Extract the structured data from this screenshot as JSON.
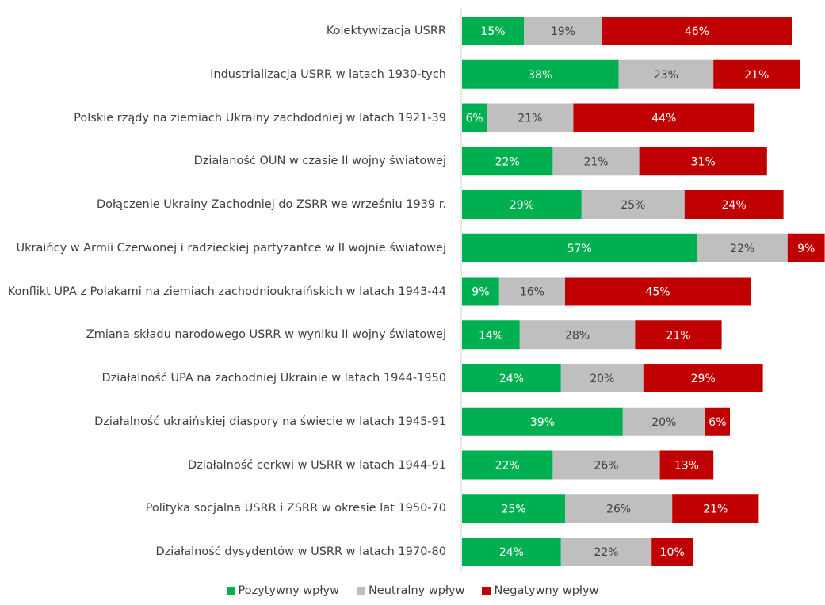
{
  "chart_data": {
    "type": "bar",
    "orientation": "horizontal",
    "stacked": true,
    "categories": [
      "Kolektywizacja USRR",
      "Industrializacja USRR w latach 1930-tych",
      "Polskie rządy na ziemiach Ukrainy zachdodniej w latach 1921-39",
      "Działaność OUN w czasie II wojny światowej",
      "Dołączenie Ukrainy Zachodniej do ZSRR we wrześniu 1939 r.",
      "Ukraińcy w Armii Czerwonej i radzieckiej partyzantce w II wojnie światowej",
      "Konflikt UPA z Polakami na ziemiach zachodnioukraińskich w latach 1943-44",
      "Zmiana składu narodowego USRR w wyniku II wojny światowej",
      "Działalność UPA na zachodniej Ukrainie w latach 1944-1950",
      "Działalność ukraińskiej diaspory na świecie w latach 1945-91",
      "Działalność cerkwi w USRR w latach 1944-91",
      "Polityka socjalna USRR i ZSRR w okresie lat 1950-70",
      "Działalność dysydentów w USRR w latach 1970-80"
    ],
    "series": [
      {
        "name": "Pozytywny wpływ",
        "color": "#00b050",
        "values": [
          15,
          38,
          6,
          22,
          29,
          57,
          9,
          14,
          24,
          39,
          22,
          25,
          24
        ],
        "value_labels": [
          "15%",
          "38%",
          "6%",
          "22%",
          "29%",
          "57%",
          "9%",
          "14%",
          "24%",
          "39%",
          "22%",
          "25%",
          "24%"
        ]
      },
      {
        "name": "Neutralny wpływ",
        "color": "#bfbfbf",
        "values": [
          19,
          23,
          21,
          21,
          25,
          22,
          16,
          28,
          20,
          20,
          26,
          26,
          22
        ],
        "value_labels": [
          "19%",
          "23%",
          "21%",
          "21%",
          "25%",
          "22%",
          "16%",
          "28%",
          "20%",
          "20%",
          "26%",
          "26%",
          "22%"
        ]
      },
      {
        "name": "Negatywny wpływ",
        "color": "#c00000",
        "values": [
          46,
          21,
          44,
          31,
          24,
          9,
          45,
          21,
          29,
          6,
          13,
          21,
          10
        ],
        "value_labels": [
          "46%",
          "21%",
          "44%",
          "31%",
          "24%",
          "9%",
          "45%",
          "21%",
          "29%",
          "6%",
          "13%",
          "21%",
          "10%"
        ]
      }
    ],
    "legend": "bottom"
  }
}
